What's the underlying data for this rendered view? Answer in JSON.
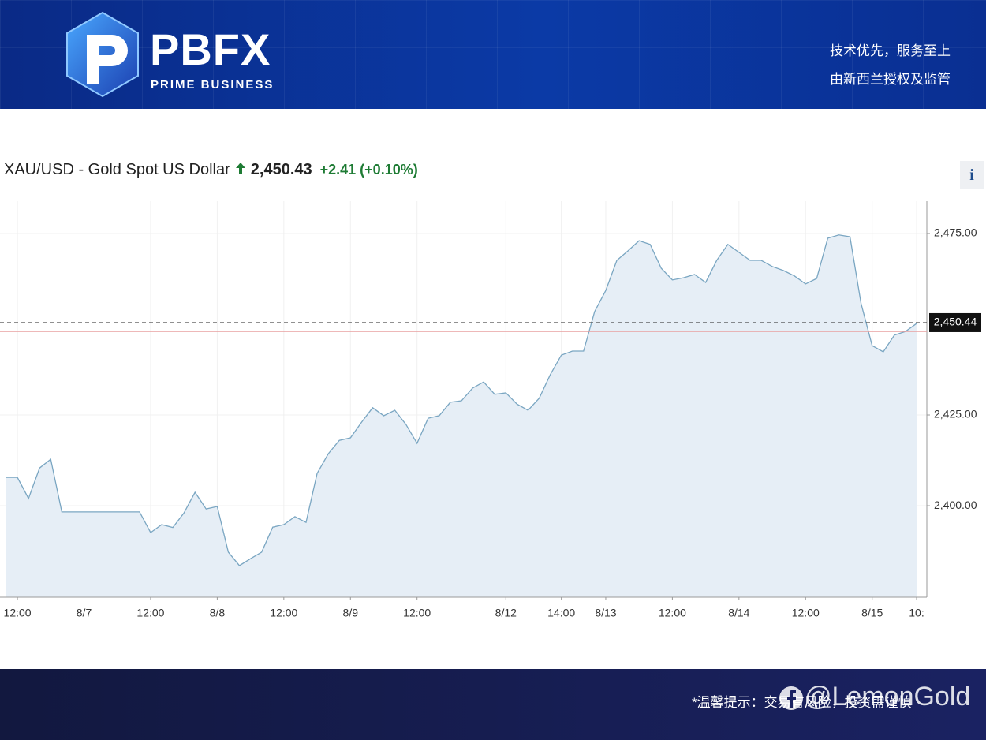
{
  "header": {
    "logo_text": "PBFX",
    "logo_subtitle": "PRIME BUSINESS",
    "tagline_lines": [
      "技术优先，服务至上",
      "由新西兰授权及监管"
    ]
  },
  "chart_data": {
    "type": "line",
    "title": "XAU/USD - Gold Spot US Dollar",
    "price": {
      "value": 2450.43,
      "label": "2,450.43"
    },
    "change": "+2.41 (+0.10%)",
    "info_button": "i",
    "categories": [
      null,
      "12:00",
      null,
      null,
      null,
      null,
      null,
      "8/7",
      null,
      null,
      null,
      null,
      null,
      "12:00",
      null,
      null,
      null,
      null,
      null,
      "8/8",
      null,
      null,
      null,
      null,
      null,
      "12:00",
      null,
      null,
      null,
      null,
      null,
      "8/9",
      null,
      null,
      null,
      null,
      null,
      "12:00",
      null,
      null,
      null,
      null,
      null,
      null,
      null,
      "8/12",
      null,
      null,
      null,
      null,
      "14:00",
      null,
      null,
      null,
      "8/13",
      null,
      null,
      null,
      null,
      null,
      "12:00",
      null,
      null,
      null,
      null,
      null,
      "8/14",
      null,
      null,
      null,
      null,
      null,
      "12:00",
      null,
      null,
      null,
      null,
      null,
      "8/15",
      null,
      null,
      null,
      "10:"
    ],
    "values": [
      2407.8,
      2407.8,
      2402.0,
      2410.4,
      2412.8,
      2398.3,
      2398.3,
      2398.3,
      2398.3,
      2398.3,
      2398.3,
      2398.3,
      2398.3,
      2392.6,
      2394.8,
      2394.0,
      2398.0,
      2403.7,
      2399.1,
      2399.8,
      2387.2,
      2383.5,
      2385.4,
      2387.2,
      2394.1,
      2394.8,
      2397.0,
      2395.4,
      2408.9,
      2414.3,
      2418.0,
      2418.7,
      2423.0,
      2427.0,
      2424.8,
      2426.3,
      2422.4,
      2417.2,
      2424.1,
      2424.8,
      2428.5,
      2428.9,
      2432.4,
      2434.1,
      2430.7,
      2431.1,
      2428.0,
      2426.3,
      2429.6,
      2436.1,
      2441.5,
      2442.6,
      2442.6,
      2453.5,
      2459.3,
      2467.6,
      2470.2,
      2473.0,
      2472.0,
      2465.4,
      2462.2,
      2462.8,
      2463.7,
      2461.5,
      2467.6,
      2472.0,
      2469.8,
      2467.6,
      2467.6,
      2465.9,
      2464.8,
      2463.3,
      2461.1,
      2462.6,
      2473.7,
      2474.6,
      2474.1,
      2455.7,
      2444.1,
      2442.4,
      2447.0,
      2448.0,
      2450.2
    ],
    "color": "#7aa6c2",
    "fill_color": "#e6eef6",
    "ylim": [
      2374.8,
      2483.9
    ],
    "yticks": [
      {
        "value": 2400,
        "label": "2,400.00"
      },
      {
        "value": 2425,
        "label": "2,425.00"
      },
      {
        "value": 2475,
        "label": "2,475.00"
      }
    ],
    "grid": true,
    "current_price": {
      "value": 2450.44,
      "label": "2,450.44"
    },
    "previous_close": 2448.0,
    "previous_close_color": "#e8a0a0"
  },
  "footer": {
    "notice": "*温馨提示：交易有风险，投资需谨慎",
    "watermark": "@LemonGold"
  }
}
